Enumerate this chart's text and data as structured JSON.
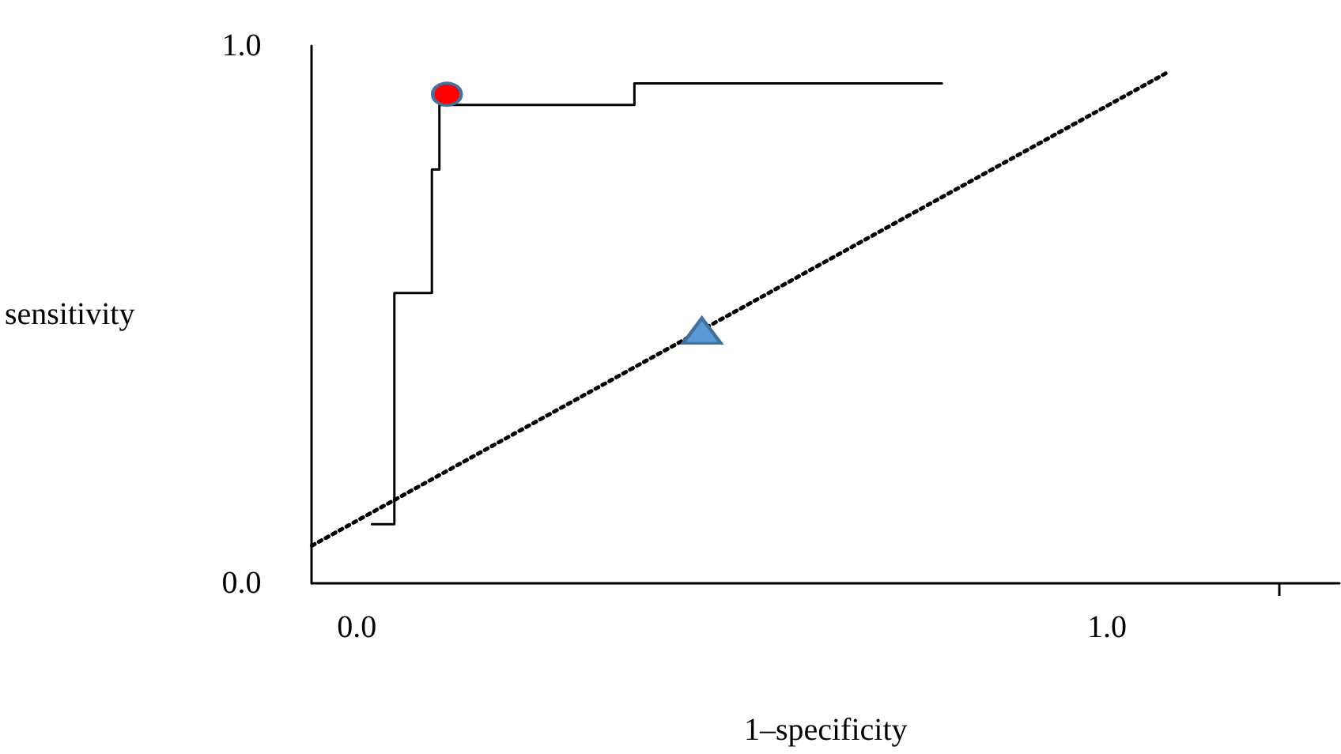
{
  "chart_data": {
    "type": "line",
    "xlabel": "1–specificity",
    "ylabel": "sensitivity",
    "xlim": [
      -0.06,
      1.31
    ],
    "xticks": [
      {
        "value": 0,
        "label": "0.0"
      },
      {
        "value": 1,
        "label": "1.0"
      },
      {
        "value": 1.23,
        "label": null
      }
    ],
    "ylim": [
      0,
      1
    ],
    "yticks": [
      {
        "value": 0,
        "label": "0.0"
      },
      {
        "value": 1,
        "label": "1.0"
      }
    ],
    "grid": false,
    "series": [
      {
        "color": "#000000",
        "marker": "none",
        "line_style": "solid",
        "x": [
          0.02,
          0.05,
          0.05,
          0.1,
          0.1,
          0.11,
          0.11,
          0.37,
          0.37,
          0.78
        ],
        "values": [
          0.11,
          0.11,
          0.54,
          0.54,
          0.77,
          0.77,
          0.89,
          0.89,
          0.93,
          0.93
        ]
      },
      {
        "color": "#000000",
        "marker": "none",
        "line_style": "dotted",
        "x": [
          -0.06,
          1.08
        ],
        "values": [
          0.07,
          0.95
        ]
      },
      {
        "type": "scatter",
        "color": "#ff0000",
        "marker": "circle",
        "x": [
          0.12
        ],
        "values": [
          0.91
        ]
      },
      {
        "type": "scatter",
        "color": "#5b9bd5",
        "marker": "triangle",
        "x": [
          0.46
        ],
        "values": [
          0.47
        ]
      }
    ]
  }
}
